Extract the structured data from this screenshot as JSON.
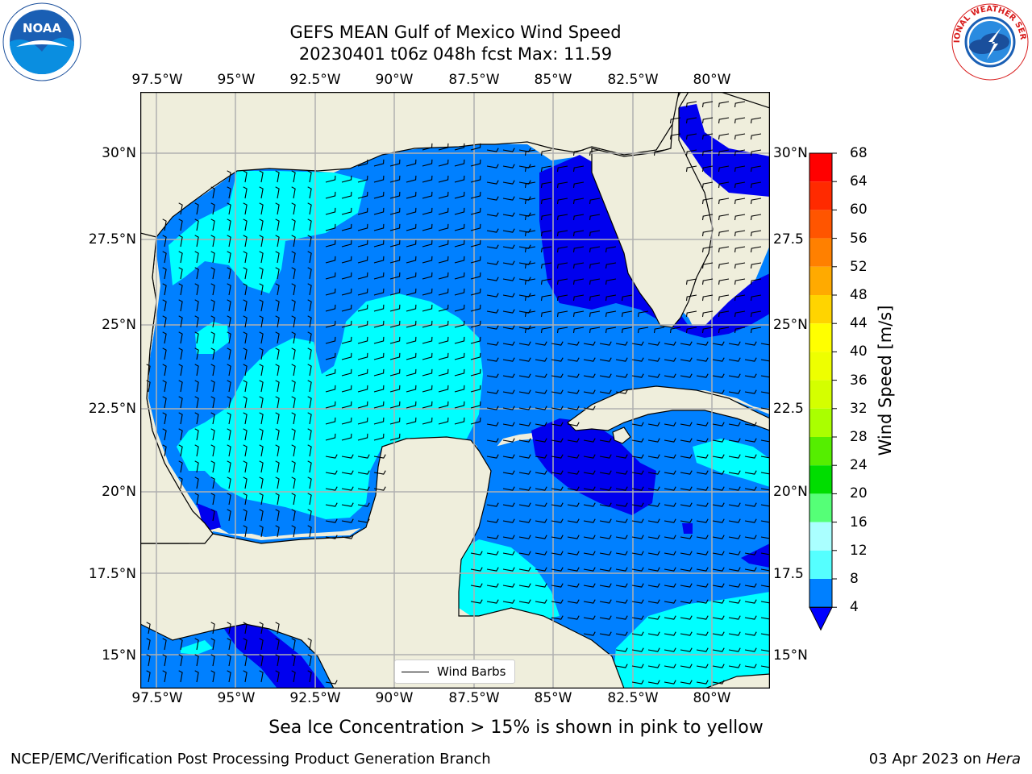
{
  "title": {
    "line1": "GEFS MEAN Gulf of Mexico Wind Speed",
    "line2": "20230401 t06z 048h fcst   Max: 11.59"
  },
  "axes": {
    "lon_labels": [
      "97.5°W",
      "95°W",
      "92.5°W",
      "90°W",
      "87.5°W",
      "85°W",
      "82.5°W",
      "80°W"
    ],
    "lat_labels_left": [
      "30°N",
      "27.5°N",
      "25°N",
      "22.5°N",
      "20°N",
      "17.5°N",
      "15°N"
    ],
    "lat_labels_right": [
      "30°N",
      "27.5",
      "25°N",
      "22.5",
      "20°N",
      "17.5",
      "15°N"
    ]
  },
  "colorbar": {
    "title": "Wind Speed [m/s]",
    "ticks": [
      "68",
      "64",
      "60",
      "56",
      "52",
      "48",
      "44",
      "40",
      "36",
      "32",
      "28",
      "24",
      "20",
      "16",
      "12",
      "8",
      "4"
    ],
    "colors": [
      "#ff0000",
      "#ff2a00",
      "#ff5500",
      "#ff8000",
      "#ffaa00",
      "#ffd400",
      "#ffff00",
      "#eeff00",
      "#d4ff00",
      "#aaff00",
      "#55ee00",
      "#00dd00",
      "#55ff77",
      "#aaffff",
      "#55ffff",
      "#00ffff",
      "#0080ff"
    ],
    "extend_color": "#0000ff"
  },
  "legend": {
    "label": "Wind Barbs"
  },
  "subnote": "Sea Ice Concentration > 15% is shown in pink to yellow",
  "footer": {
    "left": "NCEP/EMC/Verification Post Processing Product Generation Branch",
    "date": "03 Apr 2023 on ",
    "machine": "Hera"
  },
  "logos": {
    "noaa": "NOAA",
    "nws_text": "NATIONAL WEATHER SERVICE"
  },
  "map_colors": {
    "land": "#efeedc",
    "sea_4_8": "#0080ff",
    "sea_8_12": "#00ffff",
    "sea_lt4": "#0000ee",
    "grid": "#b0b0b0"
  }
}
